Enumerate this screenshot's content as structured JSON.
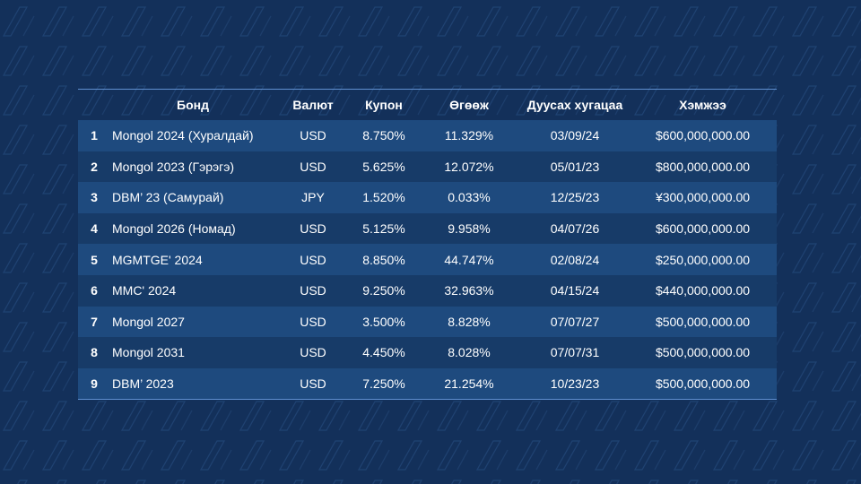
{
  "table": {
    "headers": [
      "",
      "Бонд",
      "Валют",
      "Купон",
      "Өгөөж",
      "Дуусах хугацаа",
      "Хэмжээ"
    ],
    "rows": [
      [
        "1",
        "Mongol 2024 (Хуралдай)",
        "USD",
        "8.750%",
        "11.329%",
        "03/09/24",
        "$600,000,000.00"
      ],
      [
        "2",
        "Mongol 2023 (Гэрэгэ)",
        "USD",
        "5.625%",
        "12.072%",
        "05/01/23",
        "$800,000,000.00"
      ],
      [
        "3",
        "DBM’ 23 (Самурай)",
        "JPY",
        "1.520%",
        "0.033%",
        "12/25/23",
        "¥300,000,000.00"
      ],
      [
        "4",
        "Mongol 2026 (Номад)",
        "USD",
        "5.125%",
        "9.958%",
        "04/07/26",
        "$600,000,000.00"
      ],
      [
        "5",
        "MGMTGE' 2024",
        "USD",
        "8.850%",
        "44.747%",
        "02/08/24",
        "$250,000,000.00"
      ],
      [
        "6",
        "MMC' 2024",
        "USD",
        "9.250%",
        "32.963%",
        "04/15/24",
        "$440,000,000.00"
      ],
      [
        "7",
        "Mongol 2027",
        "USD",
        "3.500%",
        "8.828%",
        "07/07/27",
        "$500,000,000.00"
      ],
      [
        "8",
        "Mongol 2031",
        "USD",
        "4.450%",
        "8.028%",
        "07/07/31",
        "$500,000,000.00"
      ],
      [
        "9",
        "DBM’ 2023",
        "USD",
        "7.250%",
        "21.254%",
        "10/23/23",
        "$500,000,000.00"
      ]
    ]
  },
  "colors": {
    "background": "#13305a",
    "row_light": "#1e4a7e",
    "row_dark": "#173b68",
    "rule": "#5f8fd0"
  }
}
